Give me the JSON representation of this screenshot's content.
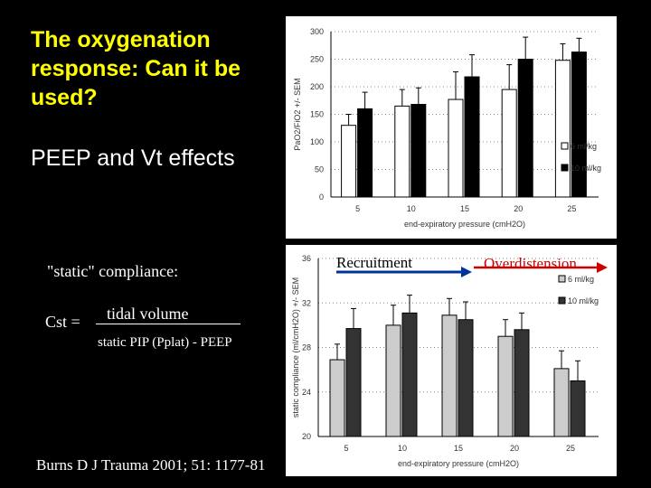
{
  "slide": {
    "title": "The oxygenation response: Can it be used?",
    "subtitle": "PEEP and Vt effects",
    "static_label": "\"static\" compliance:",
    "cst_label": "Cst =",
    "numerator": "tidal volume",
    "denominator": "static PIP (Pplat) - PEEP",
    "citation": "Burns D   J Trauma 2001; 51: 1177-81",
    "recruitment_label": "Recruitment",
    "overdistension_label": "Overdistension",
    "colors": {
      "title": "#ffff00",
      "arrow": "#cc0000",
      "recruitment_arrow": "#003399",
      "background": "#000000"
    }
  },
  "chart_data": [
    {
      "type": "bar",
      "categories": [
        "5",
        "10",
        "15",
        "20",
        "25"
      ],
      "series": [
        {
          "name": "6 ml/kg",
          "values": [
            130,
            165,
            177,
            195,
            248
          ],
          "errors": [
            20,
            30,
            50,
            45,
            30
          ],
          "color": "#ffffff"
        },
        {
          "name": "10 ml/kg",
          "values": [
            160,
            168,
            218,
            250,
            263
          ],
          "errors": [
            30,
            30,
            40,
            40,
            25
          ],
          "color": "#000000"
        }
      ],
      "xlabel": "end-expiratory pressure (cmH2O)",
      "ylabel": "PaO2/FiO2 +/- SEM",
      "ylim": [
        0,
        300
      ],
      "yticks": [
        0,
        50,
        100,
        150,
        200,
        250,
        300
      ],
      "grid": "dotted horizontal",
      "legend": "bottom-right"
    },
    {
      "type": "bar",
      "categories": [
        "5",
        "10",
        "15",
        "20",
        "25"
      ],
      "series": [
        {
          "name": "6 ml/kg",
          "values": [
            26.9,
            30.0,
            30.9,
            29.0,
            26.1
          ],
          "errors": [
            1.4,
            1.8,
            1.5,
            1.5,
            1.6
          ],
          "color": "#cccccc"
        },
        {
          "name": "10 ml/kg",
          "values": [
            29.7,
            31.1,
            30.5,
            29.6,
            25.0
          ],
          "errors": [
            1.8,
            1.6,
            1.6,
            1.5,
            1.8
          ],
          "color": "#333333"
        }
      ],
      "xlabel": "end-expiratory pressure (cmH2O)",
      "ylabel": "static compliance (ml/cmH2O) +/- SEM",
      "ylim": [
        20,
        36
      ],
      "yticks": [
        20,
        24,
        28,
        32,
        36
      ],
      "grid": "dotted horizontal",
      "legend": "top-right"
    }
  ]
}
